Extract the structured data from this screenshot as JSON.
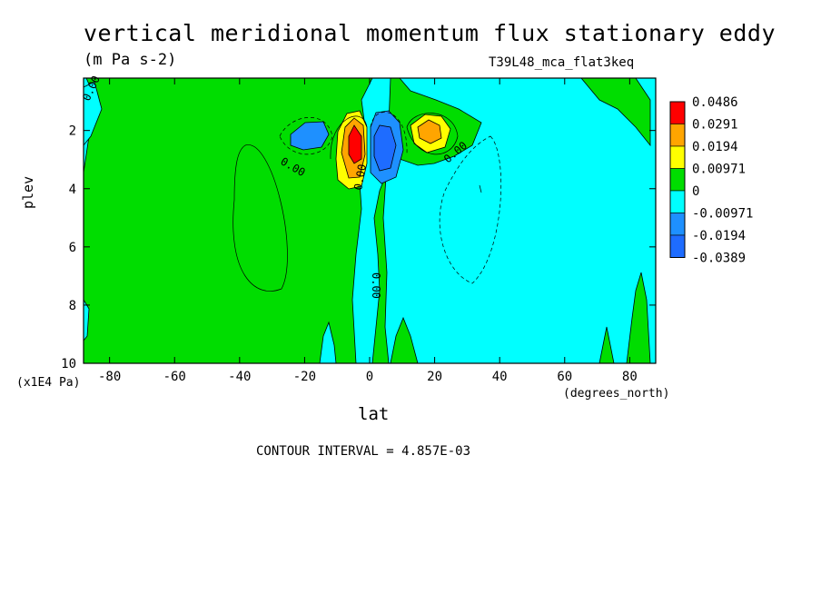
{
  "title": "vertical meridional momentum flux stationary eddy",
  "units": "(m Pa s-2)",
  "run_label": "T39L48_mca_flat3keq",
  "contour_interval": "CONTOUR INTERVAL = 4.857E-03",
  "colors": {
    "bg": "#ffffff",
    "ink": "#000000",
    "neg3": "#1e6cff",
    "neg2": "#1e90ff",
    "neg1": "#00ffff",
    "pos1": "#00dd00",
    "pos2": "#ffff00",
    "pos3": "#ffa500",
    "pos4": "#ff0000"
  },
  "chart_data": {
    "type": "heatmap",
    "title": "vertical meridional momentum flux stationary eddy",
    "subtitle": "(m Pa s-2)",
    "xlabel": "lat",
    "x_units": "(degrees_north)",
    "ylabel": "plev",
    "y_units": "(x1E4 Pa)",
    "xlim": [
      -88,
      88
    ],
    "ylim": [
      10,
      0.2
    ],
    "x_ticks": [
      -80,
      -60,
      -40,
      -20,
      0,
      20,
      40,
      60,
      80
    ],
    "y_ticks": [
      2,
      4,
      6,
      8,
      10
    ],
    "legend": {
      "position": "right",
      "levels": [
        "0.0486",
        "0.0291",
        "0.0194",
        "0.00971",
        "0",
        "-0.00971",
        "-0.0194",
        "-0.0389"
      ]
    },
    "contour_labels": [
      "0.00",
      "0.00",
      "0.00",
      "0.00",
      "0.00"
    ],
    "features": [
      {
        "lat": -5,
        "plev": 2.4,
        "value": 0.0486,
        "sign": "positive"
      },
      {
        "lat": 5,
        "plev": 2.4,
        "value": -0.0389,
        "sign": "negative"
      },
      {
        "lat": -18,
        "plev": 2.1,
        "value": -0.0194,
        "sign": "negative"
      },
      {
        "lat": 19,
        "plev": 2.1,
        "value": 0.0291,
        "sign": "positive"
      }
    ]
  }
}
